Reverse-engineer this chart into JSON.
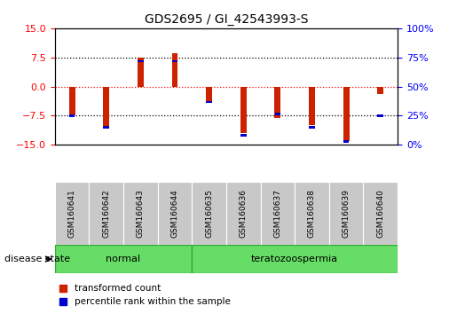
{
  "title": "GDS2695 / GI_42543993-S",
  "samples": [
    "GSM160641",
    "GSM160642",
    "GSM160643",
    "GSM160644",
    "GSM160635",
    "GSM160636",
    "GSM160637",
    "GSM160638",
    "GSM160639",
    "GSM160640"
  ],
  "red_values": [
    -7.5,
    -10.5,
    7.5,
    8.5,
    -4.0,
    -12.0,
    -8.0,
    -10.0,
    -14.0,
    -2.0
  ],
  "blue_values": [
    -7.5,
    -10.5,
    6.5,
    6.5,
    -4.0,
    -12.5,
    -7.0,
    -10.5,
    -14.2,
    -7.5
  ],
  "ylim": [
    -15,
    15
  ],
  "yticks_red": [
    -15,
    -7.5,
    0,
    7.5,
    15
  ],
  "yticks_blue": [
    0,
    25,
    50,
    75,
    100
  ],
  "hlines": [
    -7.5,
    0,
    7.5
  ],
  "red_color": "#CC2200",
  "blue_color": "#0000CC",
  "bar_width": 0.18,
  "background_color": "#ffffff",
  "disease_state_label": "disease state",
  "legend_red": "transformed count",
  "legend_blue": "percentile rank within the sample",
  "label_bg_color": "#C8C8C8",
  "group_color": "#66DD66",
  "group_edge_color": "#33AA33",
  "normal_label": "normal",
  "terato_label": "teratozoospermia"
}
